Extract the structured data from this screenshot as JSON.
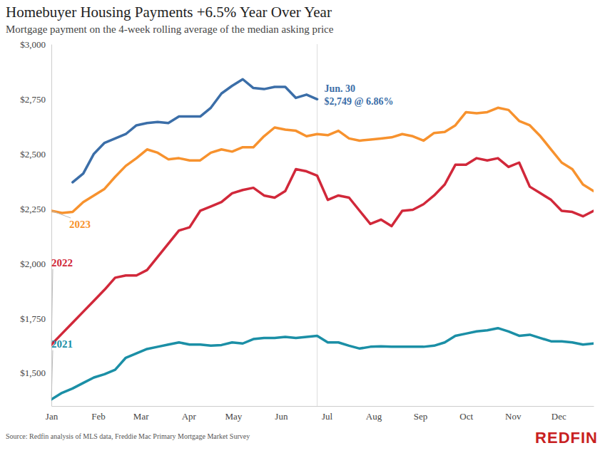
{
  "chart_data": {
    "type": "line",
    "title": "Homebuyer Housing Payments +6.5% Year Over Year",
    "subtitle": "Mortgage payment on the 4-week rolling average of the median asking price",
    "source": "Source: Redfin analysis of MLS data, Freddie Mac Primary Mortgage Market Survey",
    "logo": "REDFIN",
    "x": [
      0,
      1,
      2,
      3,
      4,
      5,
      6,
      7,
      8,
      9,
      10,
      11,
      12,
      13,
      14,
      15,
      16,
      17,
      18,
      19,
      20,
      21,
      22,
      23,
      24,
      25,
      26,
      27,
      28,
      29,
      30,
      31,
      32,
      33,
      34,
      35,
      36,
      37,
      38,
      39,
      40,
      41,
      42,
      43,
      44,
      45,
      46,
      47,
      48,
      49,
      50,
      51
    ],
    "xlim": [
      0,
      51
    ],
    "xticks": [
      {
        "value": 0,
        "label": "Jan"
      },
      {
        "value": 4.4,
        "label": "Feb"
      },
      {
        "value": 8.4,
        "label": "Mar"
      },
      {
        "value": 12.9,
        "label": "Apr"
      },
      {
        "value": 17.1,
        "label": "May"
      },
      {
        "value": 21.6,
        "label": "Jun"
      },
      {
        "value": 25.9,
        "label": "Jul"
      },
      {
        "value": 30.3,
        "label": "Aug"
      },
      {
        "value": 34.7,
        "label": "Sep"
      },
      {
        "value": 39,
        "label": "Oct"
      },
      {
        "value": 43.4,
        "label": "Nov"
      },
      {
        "value": 47.7,
        "label": "Dec"
      }
    ],
    "ylim": [
      1350,
      3000
    ],
    "yticks": [
      {
        "value": 1500,
        "label": "$1,500"
      },
      {
        "value": 1750,
        "label": "$1,750"
      },
      {
        "value": 2000,
        "label": "$2,000"
      },
      {
        "value": 2250,
        "label": "$2,250"
      },
      {
        "value": 2500,
        "label": "$2,500"
      },
      {
        "value": 2750,
        "label": "$2,750"
      },
      {
        "value": 3000,
        "label": "$3,000"
      }
    ],
    "grid": false,
    "series": [
      {
        "name": "2021",
        "color": "#1b8fa6",
        "values": [
          1380,
          1410,
          1430,
          1455,
          1480,
          1495,
          1515,
          1570,
          1590,
          1610,
          1620,
          1630,
          1640,
          1630,
          1630,
          1625,
          1628,
          1640,
          1635,
          1655,
          1660,
          1660,
          1665,
          1660,
          1665,
          1670,
          1640,
          1640,
          1625,
          1612,
          1620,
          1622,
          1620,
          1620,
          1620,
          1620,
          1625,
          1640,
          1670,
          1680,
          1690,
          1695,
          1705,
          1690,
          1670,
          1675,
          1660,
          1645,
          1645,
          1640,
          1630,
          1635
        ]
      },
      {
        "name": "2022",
        "color": "#d1283a",
        "values": [
          1630,
          1680,
          1730,
          1780,
          1830,
          1880,
          1935,
          1945,
          1945,
          1970,
          2030,
          2090,
          2150,
          2165,
          2240,
          2260,
          2280,
          2320,
          2335,
          2345,
          2310,
          2300,
          2330,
          2430,
          2420,
          2400,
          2290,
          2310,
          2300,
          2240,
          2180,
          2200,
          2170,
          2240,
          2245,
          2270,
          2310,
          2360,
          2450,
          2450,
          2480,
          2470,
          2480,
          2440,
          2460,
          2350,
          2320,
          2290,
          2240,
          2235,
          2215,
          2240
        ]
      },
      {
        "name": "2023",
        "color": "#f7922e",
        "values": [
          2240,
          2230,
          2235,
          2280,
          2310,
          2340,
          2395,
          2445,
          2480,
          2520,
          2505,
          2475,
          2480,
          2470,
          2470,
          2505,
          2520,
          2510,
          2530,
          2530,
          2580,
          2620,
          2610,
          2605,
          2580,
          2590,
          2585,
          2605,
          2570,
          2560,
          2565,
          2570,
          2575,
          2590,
          2580,
          2560,
          2595,
          2600,
          2630,
          2690,
          2685,
          2690,
          2710,
          2700,
          2650,
          2630,
          2580,
          2520,
          2460,
          2430,
          2360,
          2330
        ]
      },
      {
        "color": "#3b6ea8",
        "values": [
          null,
          null,
          2370,
          2410,
          2500,
          2550,
          2570,
          2590,
          2630,
          2640,
          2645,
          2640,
          2670,
          2670,
          2670,
          2710,
          2775,
          2810,
          2840,
          2800,
          2795,
          2805,
          2805,
          2755,
          2770,
          2749,
          null,
          null,
          null,
          null,
          null,
          null,
          null,
          null,
          null,
          null,
          null,
          null,
          null,
          null,
          null,
          null,
          null,
          null,
          null,
          null,
          null,
          null,
          null,
          null,
          null,
          null
        ]
      }
    ],
    "annotation": {
      "label": "Jun. 30",
      "text": "$2,749 @ 6.86%",
      "x": 25,
      "y": 2749
    }
  }
}
